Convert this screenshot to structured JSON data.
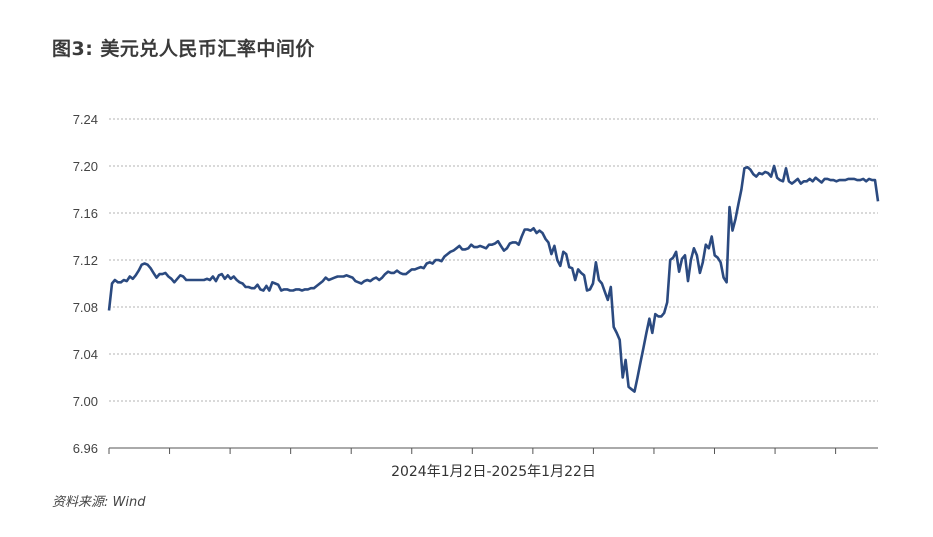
{
  "title": "图3: 美元兑人民币汇率中间价",
  "source": "资料来源: Wind",
  "colors": {
    "line": "#2b4a80",
    "grid": "#9a9a9a",
    "axis": "#555555"
  },
  "chart_data": {
    "type": "line",
    "title": "图3: 美元兑人民币汇率中间价",
    "xlabel": "2024年1月2日-2025年1月22日",
    "ylabel": "",
    "ylim": [
      6.96,
      7.24
    ],
    "yticks": [
      "7.24",
      "7.20",
      "7.16",
      "7.12",
      "7.08",
      "7.04",
      "7.00",
      "6.96"
    ],
    "grid": "horizontal dashed",
    "x_range": [
      "2024-01-02",
      "2025-01-22"
    ],
    "series": [
      {
        "values": [
          7.077,
          7.1,
          7.103,
          7.101,
          7.101,
          7.103,
          7.102,
          7.106,
          7.104,
          7.107,
          7.111,
          7.116,
          7.117,
          7.116,
          7.113,
          7.109,
          7.105,
          7.108,
          7.108,
          7.109,
          7.106,
          7.104,
          7.101,
          7.104,
          7.107,
          7.106,
          7.103,
          7.103,
          7.103,
          7.103,
          7.103,
          7.103,
          7.103,
          7.104,
          7.103,
          7.106,
          7.102,
          7.107,
          7.108,
          7.104,
          7.107,
          7.104,
          7.106,
          7.103,
          7.101,
          7.1,
          7.097,
          7.097,
          7.096,
          7.096,
          7.099,
          7.095,
          7.094,
          7.098,
          7.094,
          7.101,
          7.1,
          7.099,
          7.094,
          7.095,
          7.095,
          7.094,
          7.094,
          7.095,
          7.095,
          7.094,
          7.095,
          7.095,
          7.096,
          7.096,
          7.098,
          7.1,
          7.102,
          7.105,
          7.103,
          7.104,
          7.105,
          7.106,
          7.106,
          7.106,
          7.107,
          7.106,
          7.105,
          7.102,
          7.101,
          7.1,
          7.102,
          7.103,
          7.102,
          7.104,
          7.105,
          7.103,
          7.105,
          7.108,
          7.11,
          7.109,
          7.109,
          7.111,
          7.109,
          7.108,
          7.108,
          7.11,
          7.112,
          7.112,
          7.113,
          7.114,
          7.113,
          7.117,
          7.118,
          7.117,
          7.12,
          7.12,
          7.119,
          7.123,
          7.125,
          7.127,
          7.128,
          7.13,
          7.132,
          7.129,
          7.129,
          7.13,
          7.133,
          7.131,
          7.131,
          7.132,
          7.131,
          7.13,
          7.133,
          7.133,
          7.134,
          7.136,
          7.132,
          7.128,
          7.13,
          7.134,
          7.135,
          7.135,
          7.133,
          7.14,
          7.146,
          7.146,
          7.145,
          7.147,
          7.143,
          7.145,
          7.143,
          7.138,
          7.135,
          7.125,
          7.132,
          7.12,
          7.115,
          7.127,
          7.125,
          7.114,
          7.113,
          7.103,
          7.112,
          7.109,
          7.107,
          7.094,
          7.095,
          7.1,
          7.118,
          7.103,
          7.1,
          7.093,
          7.086,
          7.097,
          7.063,
          7.058,
          7.052,
          7.02,
          7.035,
          7.012,
          7.01,
          7.008,
          7.02,
          7.033,
          7.045,
          7.058,
          7.07,
          7.058,
          7.074,
          7.072,
          7.072,
          7.075,
          7.084,
          7.12,
          7.122,
          7.127,
          7.11,
          7.121,
          7.124,
          7.102,
          7.12,
          7.13,
          7.124,
          7.109,
          7.118,
          7.133,
          7.13,
          7.14,
          7.124,
          7.122,
          7.118,
          7.105,
          7.101,
          7.165,
          7.145,
          7.155,
          7.168,
          7.18,
          7.198,
          7.199,
          7.197,
          7.193,
          7.191,
          7.194,
          7.193,
          7.195,
          7.194,
          7.191,
          7.2,
          7.19,
          7.188,
          7.187,
          7.198,
          7.187,
          7.185,
          7.187,
          7.189,
          7.185,
          7.187,
          7.187,
          7.189,
          7.187,
          7.19,
          7.188,
          7.186,
          7.189,
          7.189,
          7.188,
          7.188,
          7.187,
          7.188,
          7.188,
          7.188,
          7.189,
          7.189,
          7.189,
          7.188,
          7.188,
          7.189,
          7.187,
          7.189,
          7.188,
          7.188,
          7.17
        ]
      }
    ]
  }
}
